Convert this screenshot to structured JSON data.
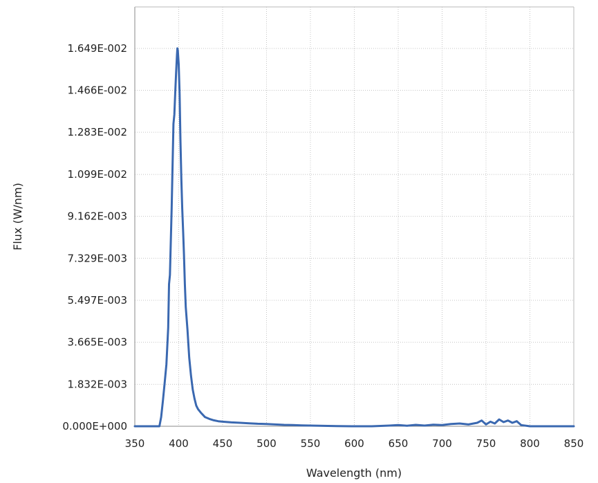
{
  "chart_data": {
    "type": "line",
    "xlabel": "Wavelength (nm)",
    "ylabel": "Flux (W/nm)",
    "xlim": [
      350,
      850
    ],
    "ylim": [
      0,
      0.0183
    ],
    "x_ticks": [
      350,
      400,
      450,
      500,
      550,
      600,
      650,
      700,
      750,
      800,
      850
    ],
    "x_tick_labels": [
      "350",
      "400",
      "450",
      "500",
      "550",
      "600",
      "650",
      "700",
      "750",
      "800",
      "850"
    ],
    "y_ticks": [
      0,
      0.001832,
      0.003665,
      0.005497,
      0.007329,
      0.009162,
      0.01099,
      0.01283,
      0.01466,
      0.01649
    ],
    "y_tick_labels": [
      "0.000E+000",
      "1.832E-003",
      "3.665E-003",
      "5.497E-003",
      "7.329E-003",
      "9.162E-003",
      "1.099E-002",
      "1.283E-002",
      "1.466E-002",
      "1.649E-002"
    ],
    "grid": true,
    "series": [
      {
        "color": "#3a68b0",
        "x": [
          350,
          370,
          378,
          380,
          382,
          384,
          386,
          388,
          389,
          390,
          392,
          394,
          395,
          396,
          397,
          398,
          398.5,
          399,
          400,
          401,
          402,
          403,
          404,
          405,
          406,
          407,
          408,
          410,
          412,
          414,
          416,
          418,
          420,
          422,
          425,
          430,
          435,
          440,
          445,
          450,
          460,
          470,
          480,
          490,
          500,
          510,
          520,
          530,
          540,
          550,
          560,
          580,
          600,
          620,
          640,
          650,
          660,
          670,
          680,
          690,
          700,
          710,
          720,
          730,
          740,
          745,
          750,
          755,
          760,
          765,
          770,
          775,
          780,
          785,
          790,
          800,
          820,
          850
        ],
        "y": [
          0,
          0,
          0,
          0.0004,
          0.0011,
          0.0019,
          0.0027,
          0.0043,
          0.0062,
          0.0066,
          0.0095,
          0.0132,
          0.0136,
          0.0145,
          0.0154,
          0.0162,
          0.01649,
          0.0164,
          0.0158,
          0.0145,
          0.0125,
          0.0108,
          0.0095,
          0.0085,
          0.0075,
          0.0062,
          0.0052,
          0.0042,
          0.003,
          0.0022,
          0.0016,
          0.0012,
          0.0009,
          0.00075,
          0.0006,
          0.0004,
          0.00032,
          0.00026,
          0.00022,
          0.0002,
          0.00017,
          0.00015,
          0.00013,
          0.00011,
          0.0001,
          8e-05,
          6e-05,
          5e-05,
          4e-05,
          3e-05,
          2e-05,
          1e-05,
          0,
          0,
          3e-05,
          5e-05,
          2e-05,
          6e-05,
          3e-05,
          7e-05,
          5e-05,
          0.0001,
          0.00012,
          8e-05,
          0.00015,
          0.00025,
          8e-05,
          0.0002,
          0.00012,
          0.0003,
          0.00018,
          0.00025,
          0.00015,
          0.00022,
          5e-05,
          0,
          0,
          0
        ]
      }
    ]
  }
}
